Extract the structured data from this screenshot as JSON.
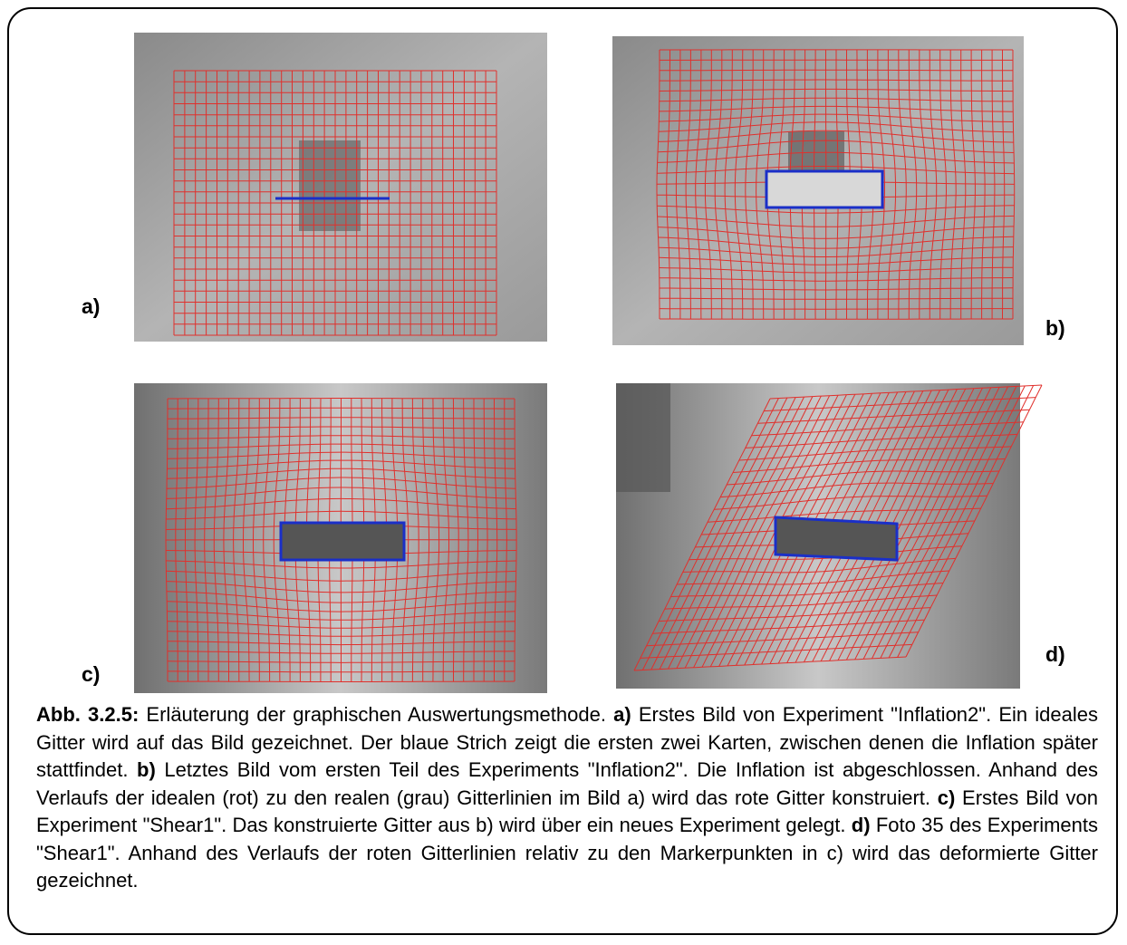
{
  "panels": [
    {
      "label": "a)"
    },
    {
      "label": "b)"
    },
    {
      "label": "c)"
    },
    {
      "label": "d)"
    }
  ],
  "caption": [
    {
      "bold": true,
      "text": "Abb. 3.2.5:"
    },
    {
      "text": " Erläuterung der graphischen Auswertungsmethode. "
    },
    {
      "bold": true,
      "text": "a)"
    },
    {
      "text": " Erstes Bild von Experiment \"Inflation2\". Ein ideales Gitter wird auf das Bild gezeichnet. Der blaue Strich zeigt die ersten zwei Kar­ten, zwischen denen die Inflation später stattfindet. "
    },
    {
      "bold": true,
      "text": "b)"
    },
    {
      "text": " Letztes Bild vom ersten Teil des Experiments \"Inflation2\". Die Inflation ist abgeschlossen. Anhand des Verlaufs der idealen (rot) zu den realen (grau) Gitterlinien im Bild a) wird das rote Gitter konstruiert. "
    },
    {
      "bold": true,
      "text": "c)"
    },
    {
      "text": " Erstes Bild von Experiment \"Shear1\". Das kon­struierte Gitter aus b) wird über ein neues Experiment gelegt. "
    },
    {
      "bold": true,
      "text": "d)"
    },
    {
      "text": " Foto 35 des Experiments \"Shear1\". Anhand des Verlaufs der roten Gitterlinien relativ zu den Markerpunkten in c) wird das deformierte Gitter gezeichnet."
    }
  ]
}
